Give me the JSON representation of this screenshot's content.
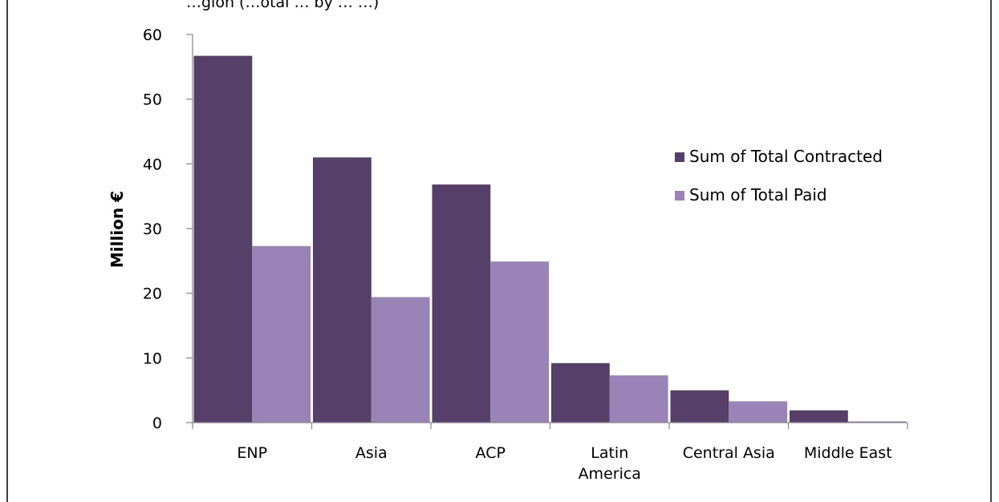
{
  "header_fragment": "…gion (…otal … by … …)",
  "chart_data": {
    "type": "bar",
    "title": "",
    "xlabel": "",
    "ylabel": "Million €",
    "ylim": [
      0,
      60
    ],
    "yticks": [
      0,
      10,
      20,
      30,
      40,
      50,
      60
    ],
    "grid": false,
    "legend_position": "right",
    "categories": [
      [
        "ENP"
      ],
      [
        "Asia"
      ],
      [
        "ACP"
      ],
      [
        "Latin",
        "America"
      ],
      [
        "Central Asia"
      ],
      [
        "Middle East"
      ]
    ],
    "series": [
      {
        "name": "Sum of Total Contracted",
        "color": "#563f68",
        "values": [
          56.7,
          41.0,
          36.8,
          9.2,
          5.0,
          1.9
        ]
      },
      {
        "name": "Sum of Total Paid",
        "color": "#9a83b6",
        "values": [
          27.3,
          19.4,
          24.9,
          7.3,
          3.3,
          0.2
        ]
      }
    ]
  }
}
